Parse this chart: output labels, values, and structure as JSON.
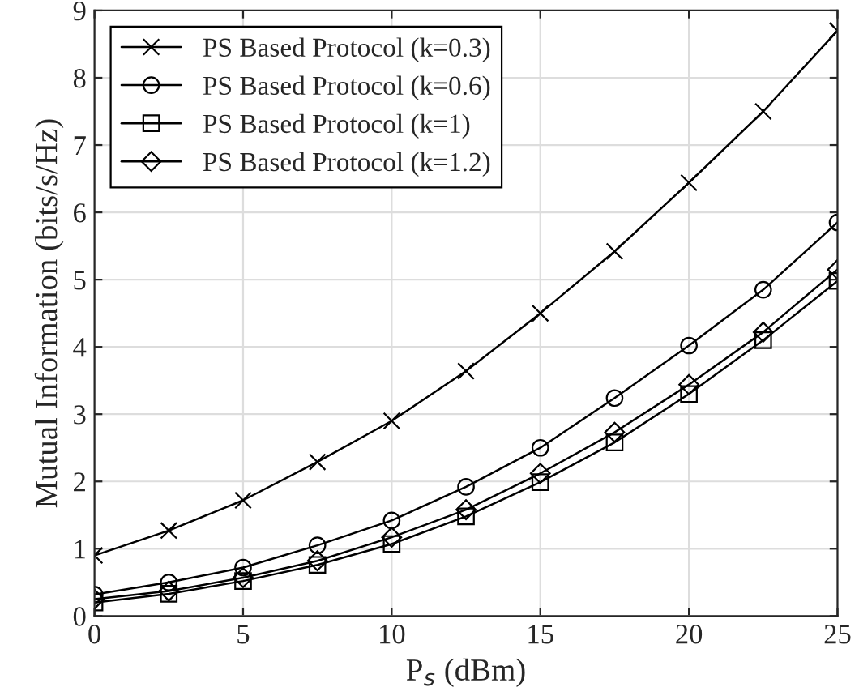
{
  "chart_data": {
    "type": "line",
    "xlabel": "P$_{s}$ (dBm)",
    "ylabel": "Mutual Information (bits/s/Hz)",
    "x": [
      0,
      2.5,
      5,
      7.5,
      10,
      12.5,
      15,
      17.5,
      20,
      22.5,
      25
    ],
    "series": [
      {
        "name": "PS Based Protocol (k=0.3)",
        "color": "#000000",
        "marker": "cross",
        "values": [
          0.9,
          1.27,
          1.72,
          2.29,
          2.9,
          3.64,
          4.5,
          5.42,
          6.44,
          7.5,
          8.7
        ]
      },
      {
        "name": "PS Based Protocol (k=0.6)",
        "color": "#000000",
        "marker": "circle",
        "values": [
          0.32,
          0.5,
          0.72,
          1.05,
          1.42,
          1.92,
          2.5,
          3.24,
          4.02,
          4.85,
          5.85
        ]
      },
      {
        "name": "PS Based Protocol (k=1)",
        "color": "#000000",
        "marker": "square",
        "values": [
          0.2,
          0.33,
          0.52,
          0.76,
          1.07,
          1.48,
          1.99,
          2.58,
          3.3,
          4.1,
          4.98
        ]
      },
      {
        "name": "PS Based Protocol (k=1.2)",
        "color": "#000000",
        "marker": "diamond",
        "values": [
          0.25,
          0.37,
          0.57,
          0.82,
          1.17,
          1.58,
          2.12,
          2.73,
          3.44,
          4.22,
          5.15
        ]
      }
    ],
    "xlim": [
      0,
      25
    ],
    "xticks": [
      0,
      5,
      10,
      15,
      20,
      25
    ],
    "ylim": [
      0,
      9
    ],
    "yticks": [
      0,
      1,
      2,
      3,
      4,
      5,
      6,
      7,
      8,
      9
    ],
    "grid": true,
    "legend": "top left",
    "line_style": "solid"
  }
}
